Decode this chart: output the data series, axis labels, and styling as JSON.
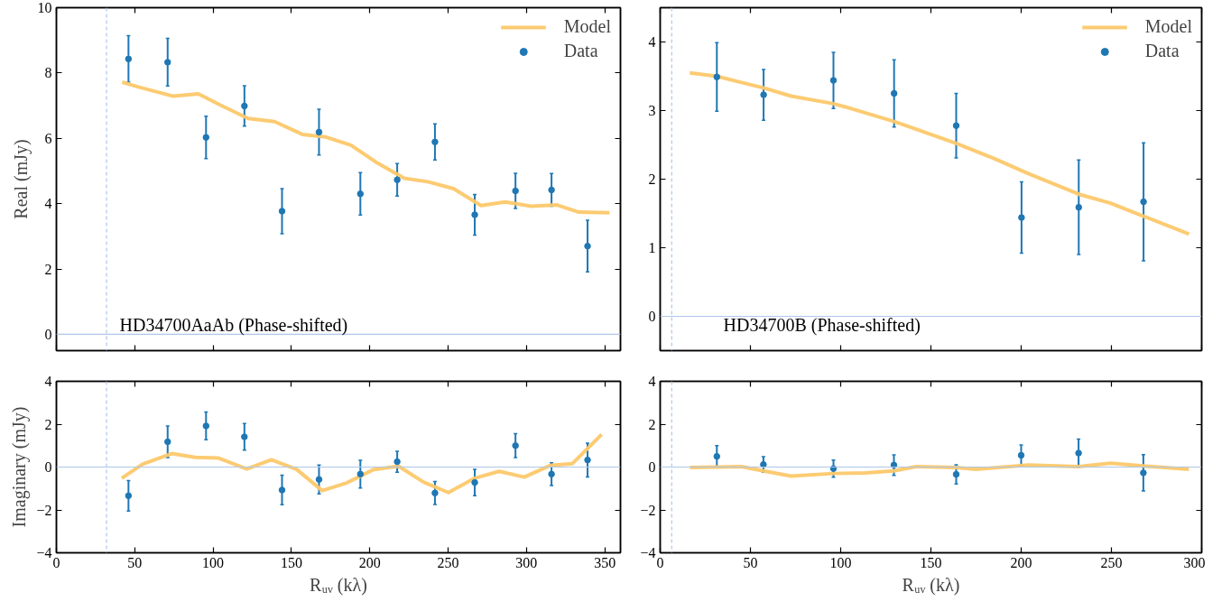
{
  "chart_data": [
    {
      "type": "line",
      "ylabel": "Real (mJy)",
      "annotations": [
        "HD34700AaAb (Phase-shifted)"
      ],
      "xlim": [
        0,
        360
      ],
      "ylim": [
        -0.5,
        10
      ],
      "xticks": [
        0,
        50,
        100,
        150,
        200,
        250,
        300,
        350
      ],
      "yticks": [
        0,
        2,
        4,
        6,
        8,
        10
      ],
      "tick_labels": "y",
      "grid": false,
      "legend": "top right",
      "ref_lines": [
        {
          "axis": "y",
          "value": 0,
          "color": "#aec7e8",
          "line_style": "solid"
        },
        {
          "axis": "x",
          "value": 32,
          "color": "#aec7e8",
          "line_style": "dashed"
        }
      ],
      "series": [
        {
          "name": "Model",
          "color": "#fcc86a",
          "line_style": "solid",
          "x": [
            42,
            51.8,
            74.6,
            90.6,
            105,
            122.3,
            139.3,
            157,
            172,
            188,
            204,
            222,
            237,
            253.5,
            271,
            286.5,
            303,
            319.5,
            333.5,
            353
          ],
          "values": [
            7.72,
            7.58,
            7.29,
            7.36,
            7.01,
            6.61,
            6.51,
            6.12,
            6.04,
            5.79,
            5.27,
            4.78,
            4.67,
            4.46,
            3.94,
            4.05,
            3.92,
            3.96,
            3.74,
            3.72
          ]
        },
        {
          "name": "Data",
          "type": "scatter",
          "color": "#1f77b4",
          "marker": "circle",
          "x": [
            46,
            71,
            95.5,
            120,
            144,
            167.6,
            194,
            217.5,
            241.6,
            267,
            293,
            316,
            339
          ],
          "values": [
            8.43,
            8.33,
            6.03,
            6.99,
            3.77,
            6.19,
            4.3,
            4.73,
            5.89,
            3.66,
            4.39,
            4.42,
            2.7
          ],
          "errors": [
            0.71,
            0.73,
            0.65,
            0.62,
            0.69,
            0.7,
            0.65,
            0.5,
            0.55,
            0.62,
            0.54,
            0.5,
            0.79
          ]
        }
      ]
    },
    {
      "type": "line",
      "annotations": [
        "HD34700B (Phase-shifted)"
      ],
      "xlim": [
        0,
        300
      ],
      "ylim": [
        -0.5,
        4.5
      ],
      "xticks": [
        0,
        50,
        100,
        150,
        200,
        250,
        300
      ],
      "yticks": [
        0,
        1,
        2,
        3,
        4
      ],
      "tick_labels": "y",
      "grid": false,
      "legend": "top right",
      "ref_lines": [
        {
          "axis": "y",
          "value": 0,
          "color": "#aec7e8",
          "line_style": "solid"
        },
        {
          "axis": "x",
          "value": 6.4,
          "color": "#aec7e8",
          "line_style": "dashed"
        }
      ],
      "series": [
        {
          "name": "Model",
          "color": "#fcc86a",
          "line_style": "solid",
          "x": [
            16.4,
            31.4,
            45,
            57.3,
            72.6,
            96,
            103,
            129.6,
            146,
            164,
            185,
            204,
            232,
            249.5,
            267.8,
            293
          ],
          "values": [
            3.55,
            3.5,
            3.41,
            3.33,
            3.21,
            3.1,
            3.05,
            2.84,
            2.69,
            2.52,
            2.3,
            2.08,
            1.78,
            1.65,
            1.46,
            1.2
          ]
        },
        {
          "name": "Data",
          "type": "scatter",
          "color": "#1f77b4",
          "marker": "circle",
          "x": [
            31.4,
            57.3,
            96,
            129.6,
            164,
            200.2,
            231.9,
            267.8
          ],
          "values": [
            3.49,
            3.23,
            3.44,
            3.25,
            2.78,
            1.44,
            1.59,
            1.67
          ],
          "errors": [
            0.5,
            0.37,
            0.41,
            0.49,
            0.47,
            0.52,
            0.69,
            0.86
          ]
        }
      ]
    },
    {
      "type": "line",
      "ylabel": "Imaginary (mJy)",
      "xlabel": "Rᵤᵥ (kλ)",
      "xlim": [
        0,
        360
      ],
      "ylim": [
        -4,
        4
      ],
      "xticks": [
        0,
        50,
        100,
        150,
        200,
        250,
        300,
        350
      ],
      "yticks": [
        -4,
        -2,
        0,
        2,
        4
      ],
      "grid": false,
      "ref_lines": [
        {
          "axis": "y",
          "value": 0,
          "color": "#aec7e8",
          "line_style": "solid"
        },
        {
          "axis": "x",
          "value": 32,
          "color": "#aec7e8",
          "line_style": "dashed"
        }
      ],
      "series": [
        {
          "color": "#fcc86a",
          "line_style": "solid",
          "x": [
            41.7,
            54.9,
            73.6,
            88.6,
            103.5,
            121.5,
            137.2,
            153.4,
            169.6,
            185.3,
            202,
            218.3,
            234.5,
            250.2,
            266.9,
            282.6,
            298.6,
            315,
            329.3,
            348
          ],
          "values": [
            -0.52,
            0.13,
            0.63,
            0.45,
            0.42,
            -0.09,
            0.34,
            -0.11,
            -1.1,
            -0.74,
            -0.13,
            0.04,
            -0.71,
            -1.19,
            -0.52,
            -0.2,
            -0.47,
            0.07,
            0.16,
            1.52
          ]
        },
        {
          "type": "scatter",
          "color": "#1f77b4",
          "marker": "circle",
          "x": [
            46,
            71,
            95.5,
            120,
            144,
            167.6,
            194,
            217.5,
            241.6,
            267,
            293,
            316,
            339
          ],
          "values": [
            -1.34,
            1.18,
            1.92,
            1.41,
            -1.07,
            -0.58,
            -0.33,
            0.25,
            -1.21,
            -0.72,
            1.0,
            -0.33,
            0.33
          ],
          "errors": [
            0.71,
            0.74,
            0.65,
            0.62,
            0.69,
            0.67,
            0.65,
            0.49,
            0.54,
            0.62,
            0.56,
            0.53,
            0.79
          ]
        }
      ]
    },
    {
      "type": "line",
      "xlabel": "Rᵤᵥ (kλ)",
      "xlim": [
        0,
        300
      ],
      "ylim": [
        -4,
        4
      ],
      "xticks": [
        0,
        50,
        100,
        150,
        200,
        250,
        300
      ],
      "yticks": [
        -4,
        -2,
        0,
        2,
        4
      ],
      "grid": false,
      "ref_lines": [
        {
          "axis": "y",
          "value": 0,
          "color": "#aec7e8",
          "line_style": "solid"
        },
        {
          "axis": "x",
          "value": 6.4,
          "color": "#aec7e8",
          "line_style": "dashed"
        }
      ],
      "series": [
        {
          "color": "#fcc86a",
          "line_style": "solid",
          "x": [
            16.4,
            31.4,
            45,
            57.2,
            72.5,
            96,
            113.8,
            129.5,
            141.8,
            164,
            175,
            204,
            231.8,
            249.4,
            267.7,
            292.9
          ],
          "values": [
            -0.02,
            0,
            0.02,
            -0.18,
            -0.42,
            -0.3,
            -0.27,
            -0.18,
            0.02,
            -0.02,
            -0.11,
            0.09,
            0.02,
            0.18,
            0.05,
            -0.11
          ]
        },
        {
          "type": "scatter",
          "color": "#1f77b4",
          "marker": "circle",
          "x": [
            31.4,
            57.2,
            96,
            129.5,
            164,
            200,
            231.8,
            267.7
          ],
          "values": [
            0.5,
            0.12,
            -0.07,
            0.09,
            -0.34,
            0.55,
            0.65,
            -0.27
          ],
          "errors": [
            0.5,
            0.36,
            0.4,
            0.48,
            0.45,
            0.48,
            0.66,
            0.85
          ]
        }
      ]
    }
  ]
}
